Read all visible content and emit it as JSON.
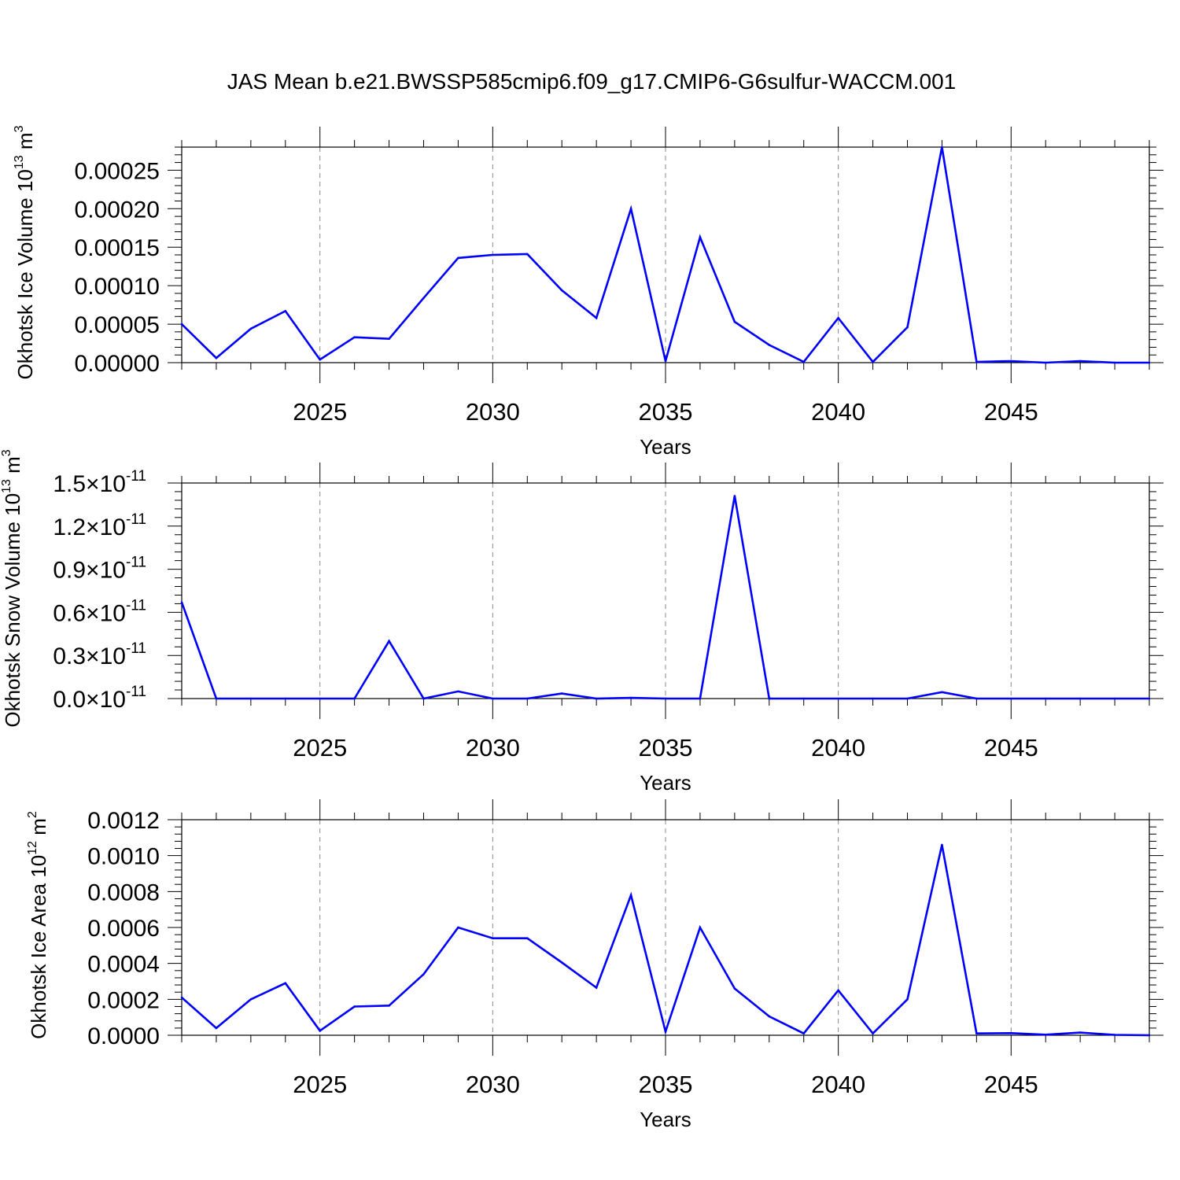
{
  "title": "JAS Mean b.e21.BWSSP585cmip6.f09_g17.CMIP6-G6sulfur-WACCM.001",
  "line_color": "#0000ff",
  "chart_data": [
    {
      "type": "line",
      "ylabel": "Okhotsk Ice Volume 10",
      "ylabel_exp": "13",
      "ylabel_unit": " m",
      "ylabel_unit_exp": "3",
      "xlabel": "Years",
      "xlim": [
        2021,
        2049
      ],
      "ylim": [
        0,
        0.00028
      ],
      "grid": "vertical dashed at major x ticks",
      "x_ticks": [
        2025,
        2030,
        2035,
        2040,
        2045
      ],
      "y_ticks": [
        {
          "value": 0,
          "label": "0.00000"
        },
        {
          "value": 5e-05,
          "label": "0.00005"
        },
        {
          "value": 0.0001,
          "label": "0.00010"
        },
        {
          "value": 0.00015,
          "label": "0.00015"
        },
        {
          "value": 0.0002,
          "label": "0.00020"
        },
        {
          "value": 0.00025,
          "label": "0.00025"
        }
      ],
      "x": [
        2021,
        2022,
        2023,
        2024,
        2025,
        2026,
        2027,
        2028,
        2029,
        2030,
        2031,
        2032,
        2033,
        2034,
        2035,
        2036,
        2037,
        2038,
        2039,
        2040,
        2041,
        2042,
        2043,
        2044,
        2045,
        2046,
        2047,
        2048,
        2049
      ],
      "values": [
        5e-05,
        6e-06,
        4.4e-05,
        6.7e-05,
        4e-06,
        3.3e-05,
        3.1e-05,
        8.4e-05,
        0.000136,
        0.00014,
        0.000141,
        9.4e-05,
        5.8e-05,
        0.0002,
        2e-06,
        0.000163,
        5.3e-05,
        2.3e-05,
        1e-06,
        5.8e-05,
        1e-06,
        4.6e-05,
        0.00028,
        1e-06,
        2e-06,
        0.0,
        2e-06,
        0.0,
        0.0
      ]
    },
    {
      "type": "line",
      "ylabel": "Okhotsk Snow Volume 10",
      "ylabel_exp": "13",
      "ylabel_unit": " m",
      "ylabel_unit_exp": "3",
      "xlabel": "Years",
      "xlim": [
        2021,
        2049
      ],
      "ylim": [
        0,
        1.5e-11
      ],
      "grid": "vertical dashed at major x ticks",
      "x_ticks": [
        2025,
        2030,
        2035,
        2040,
        2045
      ],
      "y_ticks": [
        {
          "value": 0,
          "label": "0.0",
          "times": "×",
          "base": "10",
          "exp": "-11"
        },
        {
          "value": 3e-12,
          "label": "0.3",
          "times": "×",
          "base": "10",
          "exp": "-11"
        },
        {
          "value": 6e-12,
          "label": "0.6",
          "times": "×",
          "base": "10",
          "exp": "-11"
        },
        {
          "value": 9e-12,
          "label": "0.9",
          "times": "×",
          "base": "10",
          "exp": "-11"
        },
        {
          "value": 1.2e-11,
          "label": "1.2",
          "times": "×",
          "base": "10",
          "exp": "-11"
        },
        {
          "value": 1.5e-11,
          "label": "1.5",
          "times": "×",
          "base": "10",
          "exp": "-11"
        }
      ],
      "x": [
        2021,
        2022,
        2023,
        2024,
        2025,
        2026,
        2027,
        2028,
        2029,
        2030,
        2031,
        2032,
        2033,
        2034,
        2035,
        2036,
        2037,
        2038,
        2039,
        2040,
        2041,
        2042,
        2043,
        2044,
        2045,
        2046,
        2047,
        2048,
        2049
      ],
      "values": [
        6.7e-12,
        0,
        0,
        0,
        0,
        0,
        4e-12,
        0,
        5e-13,
        0,
        0,
        3.5e-13,
        0,
        5e-14,
        0,
        0,
        1.41e-11,
        0,
        0,
        0,
        0,
        0,
        4.5e-13,
        0,
        0,
        0,
        0,
        0,
        0
      ]
    },
    {
      "type": "line",
      "ylabel": "Okhotsk Ice Area 10",
      "ylabel_exp": "12",
      "ylabel_unit": " m",
      "ylabel_unit_exp": "2",
      "xlabel": "Years",
      "xlim": [
        2021,
        2049
      ],
      "ylim": [
        0,
        0.0012
      ],
      "grid": "vertical dashed at major x ticks",
      "x_ticks": [
        2025,
        2030,
        2035,
        2040,
        2045
      ],
      "y_ticks": [
        {
          "value": 0,
          "label": "0.0000"
        },
        {
          "value": 0.0002,
          "label": "0.0002"
        },
        {
          "value": 0.0004,
          "label": "0.0004"
        },
        {
          "value": 0.0006,
          "label": "0.0006"
        },
        {
          "value": 0.0008,
          "label": "0.0008"
        },
        {
          "value": 0.001,
          "label": "0.0010"
        },
        {
          "value": 0.0012,
          "label": "0.0012"
        }
      ],
      "x": [
        2021,
        2022,
        2023,
        2024,
        2025,
        2026,
        2027,
        2028,
        2029,
        2030,
        2031,
        2032,
        2033,
        2034,
        2035,
        2036,
        2037,
        2038,
        2039,
        2040,
        2041,
        2042,
        2043,
        2044,
        2045,
        2046,
        2047,
        2048,
        2049
      ],
      "values": [
        0.00021,
        4e-05,
        0.0002,
        0.00029,
        2.5e-05,
        0.00016,
        0.000165,
        0.00034,
        0.0006,
        0.00054,
        0.00054,
        0.000405,
        0.000265,
        0.00078,
        2e-05,
        0.0006,
        0.00026,
        0.000105,
        1e-05,
        0.00025,
        1e-05,
        0.0002,
        0.00106,
        1e-05,
        1.2e-05,
        3e-06,
        1.5e-05,
        2e-06,
        0.0
      ]
    }
  ]
}
